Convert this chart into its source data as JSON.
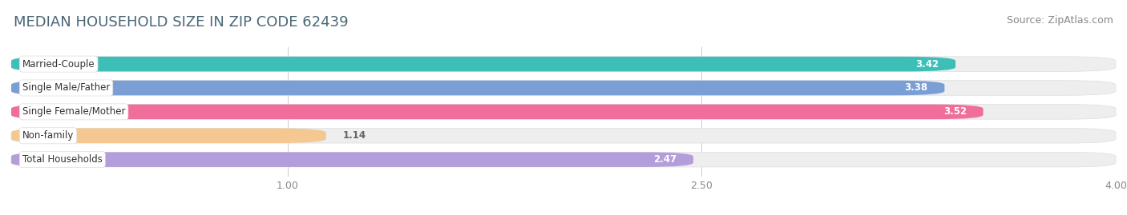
{
  "title": "MEDIAN HOUSEHOLD SIZE IN ZIP CODE 62439",
  "source": "Source: ZipAtlas.com",
  "categories": [
    "Married-Couple",
    "Single Male/Father",
    "Single Female/Mother",
    "Non-family",
    "Total Households"
  ],
  "values": [
    3.42,
    3.38,
    3.52,
    1.14,
    2.47
  ],
  "bar_colors": [
    "#3dbfb8",
    "#7b9fd4",
    "#f06e9b",
    "#f5c891",
    "#b39ddb"
  ],
  "xlim_data": [
    0,
    4.0
  ],
  "xmin": 0.0,
  "xmax": 4.0,
  "xticks": [
    1.0,
    2.5,
    4.0
  ],
  "title_fontsize": 13,
  "source_fontsize": 9,
  "label_fontsize": 8.5,
  "value_fontsize": 8.5,
  "bar_height": 0.62,
  "background_color": "#ffffff",
  "bar_bg_color": "#eeeeee",
  "title_color": "#4a6fa5",
  "label_bg_color": "#ffffff"
}
